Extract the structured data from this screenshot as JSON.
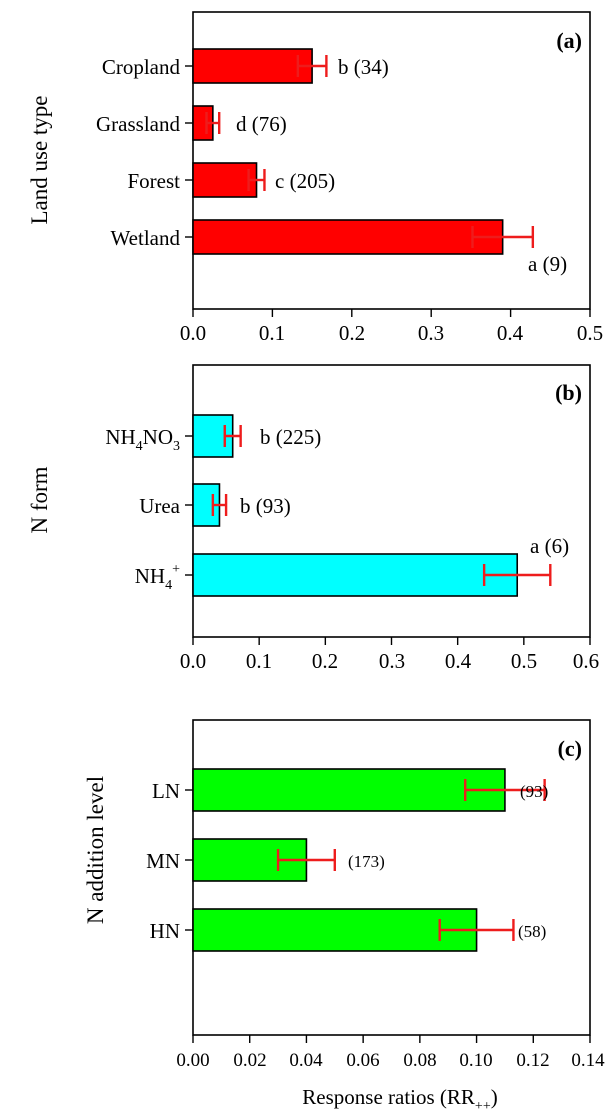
{
  "chart_data": [
    {
      "type": "bar",
      "orientation": "horizontal",
      "panel_label": "(a)",
      "ylabel": "Land use type",
      "xlabel": "",
      "xlim": [
        0,
        0.5
      ],
      "xticks": [
        "0.0",
        "0.1",
        "0.2",
        "0.3",
        "0.4",
        "0.5"
      ],
      "bar_color": "#ff0000",
      "error_color": "#ee1c1c",
      "categories": [
        "Cropland",
        "Grassland",
        "Forest",
        "Wetland"
      ],
      "values": [
        0.15,
        0.025,
        0.08,
        0.39
      ],
      "errors": [
        0.018,
        0.008,
        0.01,
        0.038
      ],
      "annotations": [
        "b (34)",
        "d (76)",
        "c (205)",
        "a (9)"
      ]
    },
    {
      "type": "bar",
      "orientation": "horizontal",
      "panel_label": "(b)",
      "ylabel": "N form",
      "xlabel": "",
      "xlim": [
        0,
        0.6
      ],
      "xticks": [
        "0.0",
        "0.1",
        "0.2",
        "0.3",
        "0.4",
        "0.5",
        "0.6"
      ],
      "bar_color": "#00ffff",
      "error_color": "#ee1c1c",
      "categories": [
        "NH4NO3",
        "Urea",
        "NH4+"
      ],
      "values": [
        0.06,
        0.04,
        0.49
      ],
      "errors": [
        0.012,
        0.01,
        0.05
      ],
      "annotations": [
        "b (225)",
        "b (93)",
        "a (6)"
      ]
    },
    {
      "type": "bar",
      "orientation": "horizontal",
      "panel_label": "(c)",
      "ylabel": "N addition level",
      "xlabel": "Response ratios (RR++)",
      "xlim": [
        0,
        0.14
      ],
      "xticks": [
        "0.00",
        "0.02",
        "0.04",
        "0.06",
        "0.08",
        "0.10",
        "0.12",
        "0.14"
      ],
      "bar_color": "#00ff00",
      "error_color": "#ee1c1c",
      "categories": [
        "LN",
        "MN",
        "HN"
      ],
      "values": [
        0.11,
        0.04,
        0.1
      ],
      "errors": [
        0.014,
        0.01,
        0.013
      ],
      "annotations": [
        "(93)",
        "(173)",
        "(58)"
      ]
    }
  ]
}
